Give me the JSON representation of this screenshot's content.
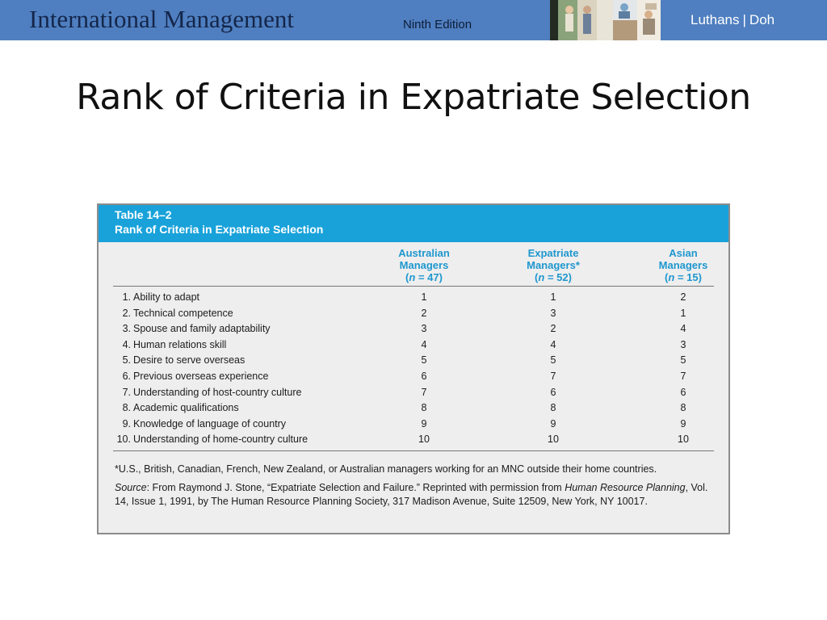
{
  "header": {
    "title_word1": "International",
    "title_word2": "Management",
    "edition": "Ninth Edition",
    "author1": "Luthans",
    "separator": "|",
    "author2": "Doh",
    "colors": {
      "banner": "#4f7fc0",
      "title_text": "#14264a"
    }
  },
  "slide": {
    "title": "Rank of Criteria in Expatriate Selection"
  },
  "table": {
    "number": "Table 14–2",
    "caption": "Rank of Criteria in Expatriate Selection",
    "header_color": "#19a2da",
    "columns": [
      {
        "line1": "Australian",
        "line2": "Managers",
        "n_open": "(",
        "n_var": "n",
        "n_value": " = 47)"
      },
      {
        "line1": "Expatriate",
        "line2": "Managers*",
        "n_open": "(",
        "n_var": "n",
        "n_value": " = 52)"
      },
      {
        "line1": "Asian",
        "line2": "Managers",
        "n_open": "(",
        "n_var": "n",
        "n_value": " = 15)"
      }
    ],
    "rows": [
      {
        "num": "1.",
        "criterion": "Ability to adapt",
        "australian": "1",
        "expatriate": "1",
        "asian": "2"
      },
      {
        "num": "2.",
        "criterion": "Technical competence",
        "australian": "2",
        "expatriate": "3",
        "asian": "1"
      },
      {
        "num": "3.",
        "criterion": "Spouse and family adaptability",
        "australian": "3",
        "expatriate": "2",
        "asian": "4"
      },
      {
        "num": "4.",
        "criterion": "Human relations skill",
        "australian": "4",
        "expatriate": "4",
        "asian": "3"
      },
      {
        "num": "5.",
        "criterion": "Desire to serve overseas",
        "australian": "5",
        "expatriate": "5",
        "asian": "5"
      },
      {
        "num": "6.",
        "criterion": "Previous overseas experience",
        "australian": "6",
        "expatriate": "7",
        "asian": "7"
      },
      {
        "num": "7.",
        "criterion": "Understanding of host-country culture",
        "australian": "7",
        "expatriate": "6",
        "asian": "6"
      },
      {
        "num": "8.",
        "criterion": "Academic qualifications",
        "australian": "8",
        "expatriate": "8",
        "asian": "8"
      },
      {
        "num": "9.",
        "criterion": "Knowledge of language of country",
        "australian": "9",
        "expatriate": "9",
        "asian": "9"
      },
      {
        "num": "10.",
        "criterion": "Understanding of home-country culture",
        "australian": "10",
        "expatriate": "10",
        "asian": "10"
      }
    ],
    "footnote": "*U.S., British, Canadian, French, New Zealand, or Australian managers working for an MNC outside their home countries.",
    "source": {
      "label": "Source",
      "text1": ": From Raymond J. Stone, “Expatriate Selection and Failure.” Reprinted with permission from ",
      "journal": "Human Resource Planning",
      "text2": ", Vol. 14, Issue 1, 1991, by The Human Resource Planning Society, 317 Madison Avenue, Suite 12509, New York, NY 10017."
    }
  }
}
